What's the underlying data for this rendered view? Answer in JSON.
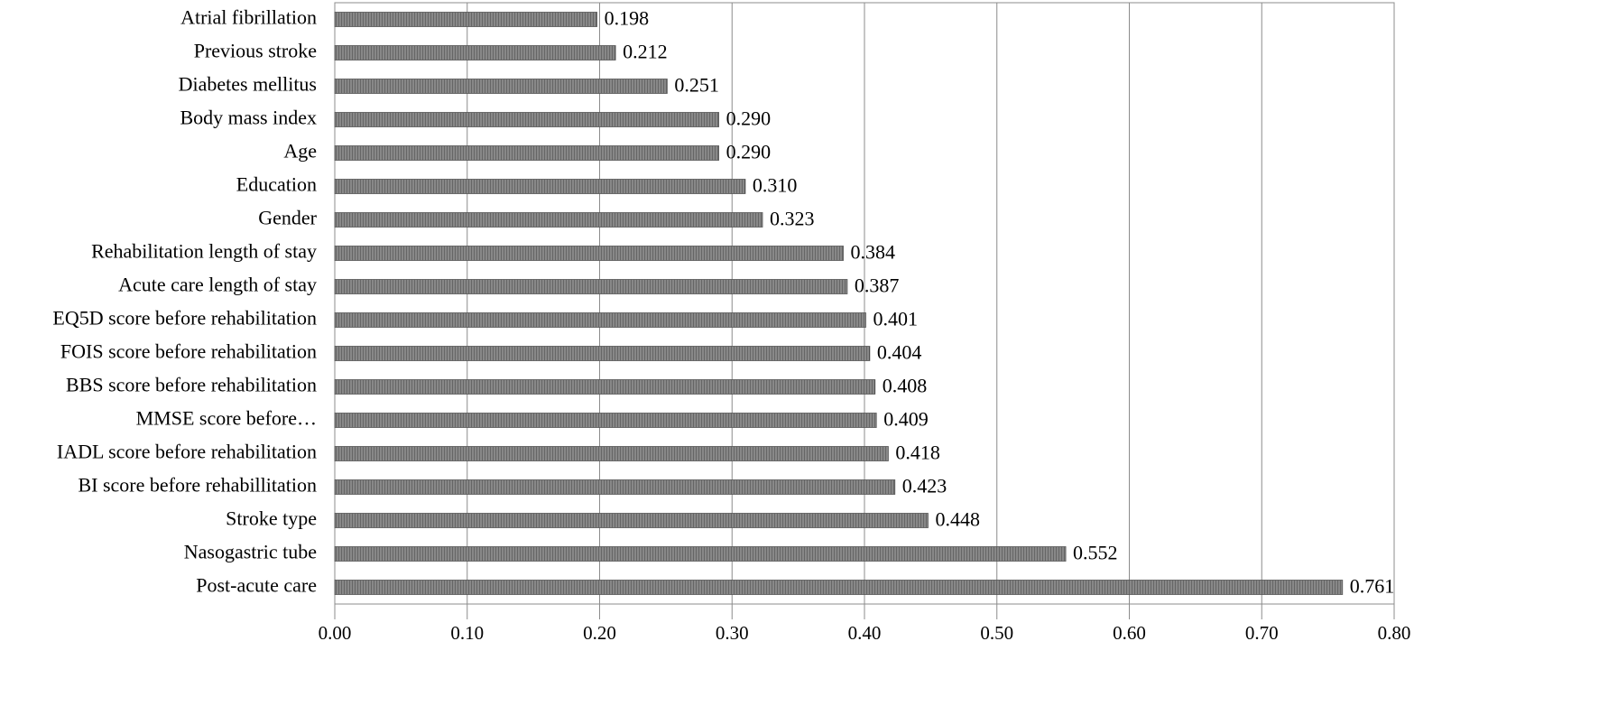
{
  "chart_data": {
    "type": "barh",
    "categories": [
      "Atrial fibrillation",
      "Previous stroke",
      "Diabetes mellitus",
      "Body mass index",
      "Age",
      "Education",
      "Gender",
      "Rehabilitation length of stay",
      "Acute care length of stay",
      "EQ5D score before rehabilitation",
      "FOIS score before rehabilitation",
      "BBS score before rehabilitation",
      "MMSE score before…",
      "IADL score before rehabilitation",
      "BI score before rehabillitation",
      "Stroke type",
      "Nasogastric tube",
      "Post-acute care"
    ],
    "values": [
      0.198,
      0.212,
      0.251,
      0.29,
      0.29,
      0.31,
      0.323,
      0.384,
      0.387,
      0.401,
      0.404,
      0.408,
      0.409,
      0.418,
      0.423,
      0.448,
      0.552,
      0.761
    ],
    "value_labels": [
      "0.198",
      "0.212",
      "0.251",
      "0.290",
      "0.290",
      "0.310",
      "0.323",
      "0.384",
      "0.387",
      "0.401",
      "0.404",
      "0.408",
      "0.409",
      "0.418",
      "0.423",
      "0.448",
      "0.552",
      "0.761"
    ],
    "color": "#6e6e6e",
    "xlim": [
      0,
      0.8
    ],
    "xticks": [
      {
        "value": 0,
        "label": "0.00"
      },
      {
        "value": 0.1,
        "label": "0.10"
      },
      {
        "value": 0.2,
        "label": "0.20"
      },
      {
        "value": 0.3,
        "label": "0.30"
      },
      {
        "value": 0.4,
        "label": "0.40"
      },
      {
        "value": 0.5,
        "label": "0.50"
      },
      {
        "value": 0.6,
        "label": "0.60"
      },
      {
        "value": 0.7,
        "label": "0.70"
      },
      {
        "value": 0.8,
        "label": "0.80"
      }
    ],
    "grid": true
  }
}
